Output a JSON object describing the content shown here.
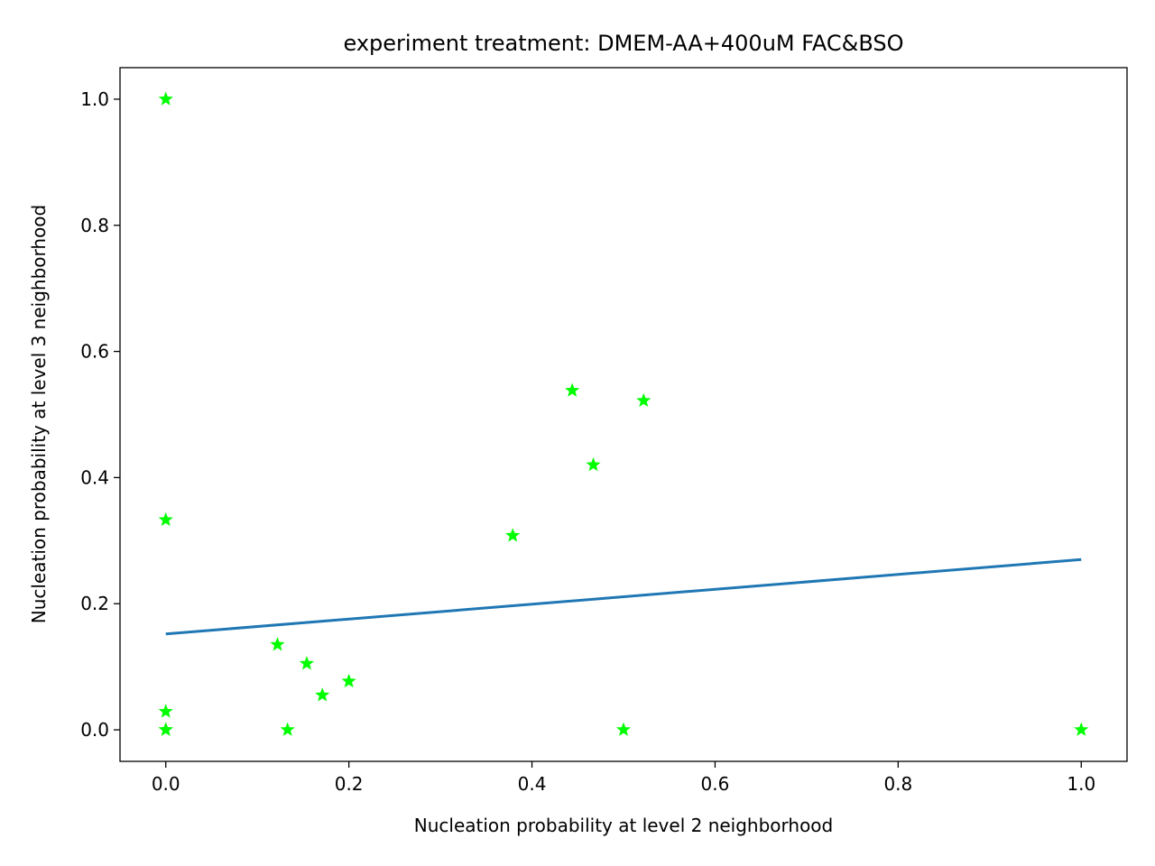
{
  "chart_data": {
    "type": "scatter",
    "title": "experiment treatment: DMEM-AA+400uM FAC&BSO",
    "xlabel": "Nucleation probability at level 2 neighborhood",
    "ylabel": "Nucleation probability at level 3 neighborhood",
    "xlim": [
      -0.05,
      1.05
    ],
    "ylim": [
      -0.05,
      1.05
    ],
    "xticks": [
      0.0,
      0.2,
      0.4,
      0.6,
      0.8,
      1.0
    ],
    "xtick_labels": [
      "0.0",
      "0.2",
      "0.4",
      "0.6",
      "0.8",
      "1.0"
    ],
    "yticks": [
      0.0,
      0.2,
      0.4,
      0.6,
      0.8,
      1.0
    ],
    "ytick_labels": [
      "0.0",
      "0.2",
      "0.4",
      "0.6",
      "0.8",
      "1.0"
    ],
    "grid": false,
    "series": [
      {
        "kind": "scatter",
        "marker": "star",
        "color": "#00ff00",
        "points": [
          [
            0.0,
            1.0
          ],
          [
            0.0,
            0.333
          ],
          [
            0.0,
            0.029
          ],
          [
            0.0,
            0.0
          ],
          [
            0.0,
            0.0
          ],
          [
            0.122,
            0.135
          ],
          [
            0.133,
            0.0
          ],
          [
            0.154,
            0.105
          ],
          [
            0.171,
            0.055
          ],
          [
            0.2,
            0.077
          ],
          [
            0.379,
            0.308
          ],
          [
            0.444,
            0.538
          ],
          [
            0.467,
            0.42
          ],
          [
            0.5,
            0.0
          ],
          [
            0.522,
            0.522
          ],
          [
            1.0,
            0.0
          ]
        ]
      },
      {
        "kind": "line",
        "color": "#1f77b4",
        "points": [
          [
            0.0,
            0.152
          ],
          [
            1.0,
            0.27
          ]
        ]
      }
    ]
  }
}
